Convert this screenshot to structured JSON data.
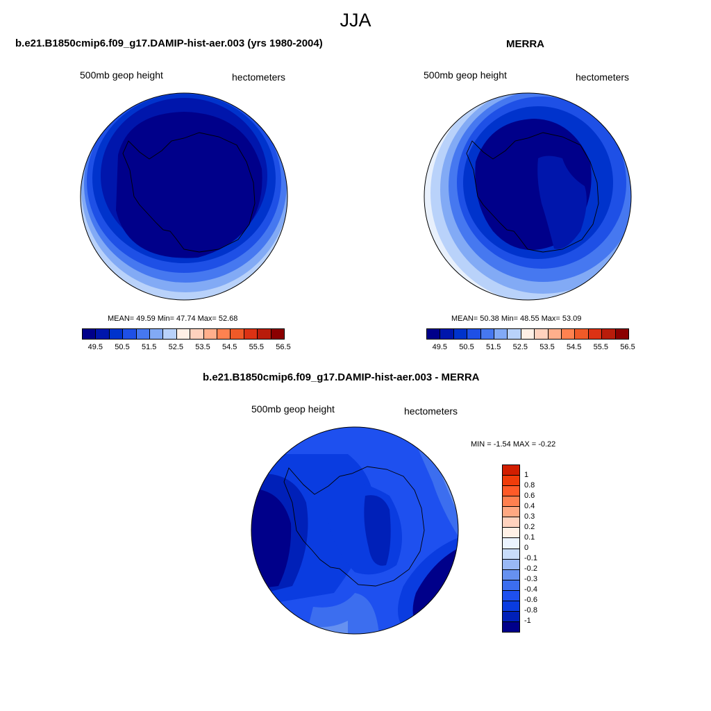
{
  "title": "JJA",
  "palette": {
    "main": [
      "#00008a",
      "#0016ac",
      "#0033cc",
      "#1e50e6",
      "#4678f0",
      "#82aaf5",
      "#b9d2fa",
      "#fff0e6",
      "#ffd2be",
      "#ffaf8c",
      "#ff8250",
      "#f05a28",
      "#dc3214",
      "#b91c0a",
      "#8b0000"
    ],
    "diff": [
      "#00008a",
      "#0020b8",
      "#0a3ce0",
      "#1e50ef",
      "#3c6eef",
      "#6691f0",
      "#99b8f5",
      "#c8dcfa",
      "#ebf3ff",
      "#fff0e6",
      "#ffd2be",
      "#ffa882",
      "#ff8050",
      "#ff5a28",
      "#f03c0a",
      "#d21e00",
      "#b91c0a",
      "#8b0000"
    ]
  },
  "panels": [
    {
      "title": "b.e21.B1850cmip6.f09_g17.DAMIP-hist-aer.003 (yrs 1980-2004)",
      "variable": "500mb geop height",
      "units": "hectometers",
      "stats": "MEAN=  49.59  Min=  47.74  Max=  52.68",
      "colorbar_labels": [
        "49.5",
        "50.5",
        "51.5",
        "52.5",
        "53.5",
        "54.5",
        "55.5",
        "56.5"
      ]
    },
    {
      "title": "MERRA",
      "variable": "500mb geop height",
      "units": "hectometers",
      "stats": "MEAN=  50.38  Min=  48.55  Max=  53.09",
      "colorbar_labels": [
        "49.5",
        "50.5",
        "51.5",
        "52.5",
        "53.5",
        "54.5",
        "55.5",
        "56.5"
      ]
    },
    {
      "title": "b.e21.B1850cmip6.f09_g17.DAMIP-hist-aer.003 - MERRA",
      "variable": "500mb geop height",
      "units": "hectometers",
      "stats": "MIN =  -1.54 MAX =  -0.22",
      "colorbar_labels": [
        "1",
        "0.8",
        "0.6",
        "0.4",
        "0.3",
        "0.2",
        "0.1",
        "0",
        "-0.1",
        "-0.2",
        "-0.3",
        "-0.4",
        "-0.6",
        "-0.8",
        "-1"
      ]
    }
  ],
  "chart_data": [
    {
      "type": "heatmap",
      "projection": "south polar stereographic",
      "title": "b.e21.B1850cmip6.f09_g17.DAMIP-hist-aer.003 (yrs 1980-2004)",
      "variable": "500mb geop height",
      "units": "hectometers",
      "mean": 49.59,
      "min": 47.74,
      "max": 52.68,
      "contour_levels": [
        49.5,
        50,
        50.5,
        51,
        51.5,
        52,
        52.5,
        53,
        53.5,
        54,
        54.5,
        55,
        55.5,
        56,
        56.5
      ]
    },
    {
      "type": "heatmap",
      "projection": "south polar stereographic",
      "title": "MERRA",
      "variable": "500mb geop height",
      "units": "hectometers",
      "mean": 50.38,
      "min": 48.55,
      "max": 53.09,
      "contour_levels": [
        49.5,
        50,
        50.5,
        51,
        51.5,
        52,
        52.5,
        53,
        53.5,
        54,
        54.5,
        55,
        55.5,
        56,
        56.5
      ]
    },
    {
      "type": "heatmap",
      "projection": "south polar stereographic",
      "title": "b.e21.B1850cmip6.f09_g17.DAMIP-hist-aer.003 - MERRA",
      "variable": "500mb geop height",
      "units": "hectometers",
      "min": -1.54,
      "max": -0.22,
      "contour_levels": [
        -1,
        -0.8,
        -0.6,
        -0.4,
        -0.3,
        -0.2,
        -0.1,
        0,
        0.1,
        0.2,
        0.3,
        0.4,
        0.6,
        0.8,
        1
      ]
    }
  ]
}
